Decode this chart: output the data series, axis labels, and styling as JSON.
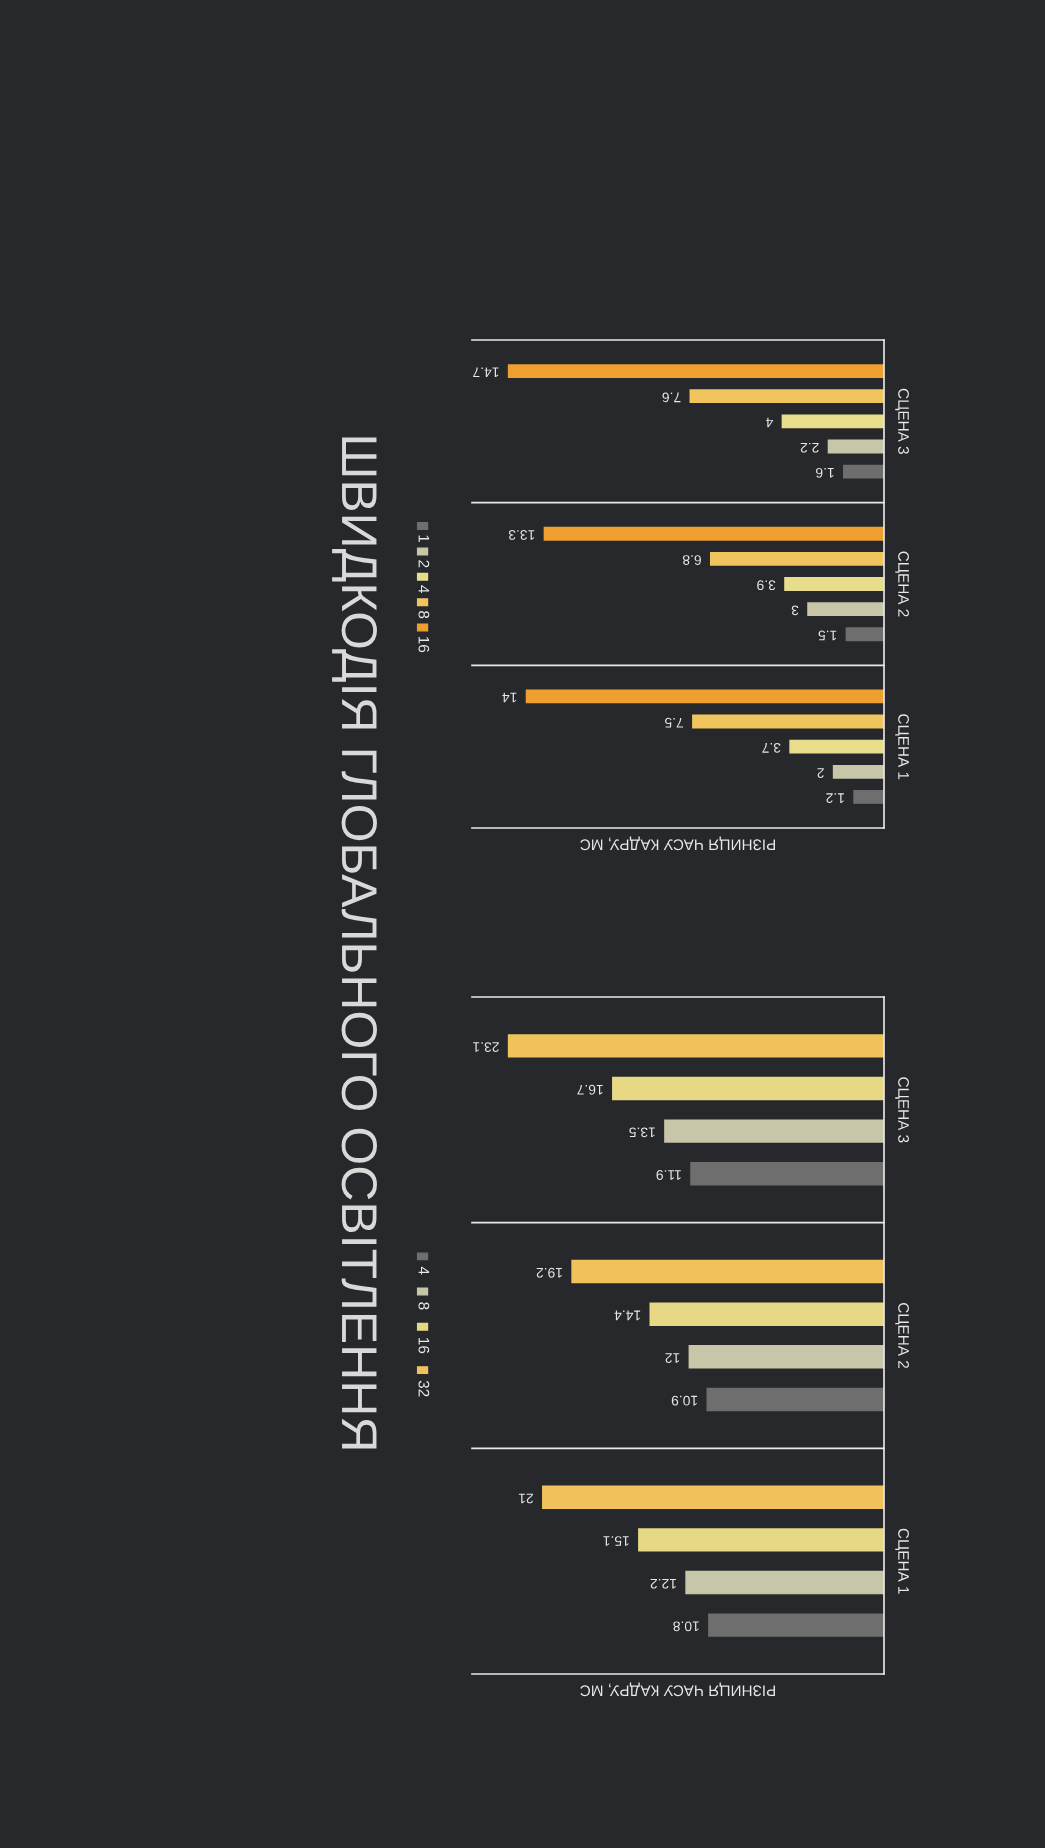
{
  "chart_data": [
    {
      "type": "bar",
      "title": "ШВИДКОДІЯ ГЛОБАЛЬНОГО ОСВІТЛЕННЯ",
      "orientation": "horizontal",
      "xlabel": "РІЗНИЦЯ ЧАСУ КАДРУ, МС",
      "categories": [
        "СЦЕНА 3",
        "СЦЕНА 2",
        "СЦЕНА 1"
      ],
      "xlim": [
        25.3,
        0
      ],
      "data_labels": true,
      "grid": "y",
      "legend": "left",
      "tick_labels": "y",
      "series": [
        {
          "name": "4",
          "color": "#6e6e6e",
          "values": [
            11.9,
            10.9,
            10.8
          ]
        },
        {
          "name": "8",
          "color": "#c8c6a9",
          "values": [
            13.5,
            12,
            12.2
          ]
        },
        {
          "name": "16",
          "color": "#e6d885",
          "values": [
            16.7,
            14.4,
            15.1
          ]
        },
        {
          "name": "32",
          "color": "#f0c25c",
          "values": [
            23.1,
            19.2,
            21
          ]
        }
      ]
    },
    {
      "type": "bar",
      "orientation": "horizontal",
      "xlabel": "РІЗНИЦЯ ЧАСУ КАДРУ, МС",
      "categories": [
        "СЦЕНА 3",
        "СЦЕНА 2",
        "СЦЕНА 1"
      ],
      "xlim": [
        16.1,
        0
      ],
      "data_labels": true,
      "grid": "y",
      "legend": "left",
      "tick_labels": "y",
      "series": [
        {
          "name": "1",
          "color": "#6e6e6e",
          "values": [
            1.6,
            1.5,
            1.2
          ]
        },
        {
          "name": "2",
          "color": "#c8c6a9",
          "values": [
            2.2,
            3,
            2
          ]
        },
        {
          "name": "4",
          "color": "#e8dd8a",
          "values": [
            4,
            3.9,
            3.7
          ]
        },
        {
          "name": "8",
          "color": "#f0c55e",
          "values": [
            7.6,
            6.8,
            7.5
          ]
        },
        {
          "name": "16",
          "color": "#ee9f30",
          "values": [
            14.7,
            13.3,
            14
          ]
        }
      ]
    }
  ]
}
